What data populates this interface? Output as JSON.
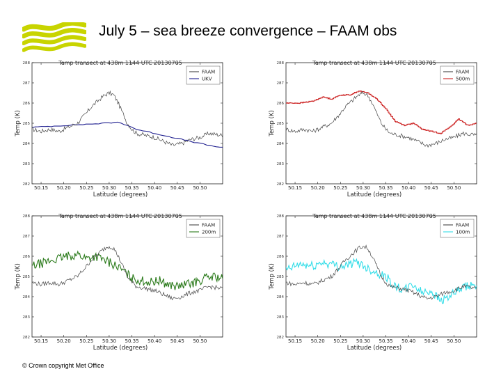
{
  "slide": {
    "title": "July 5 – sea breeze convergence – FAAM obs",
    "footer": "© Crown copyright   Met Office",
    "logo_color": "#c8d400"
  },
  "chart_data": [
    {
      "type": "line",
      "title": "Temp transect at 438m 1144 UTC 20130705",
      "xlabel": "Latitude (degrees)",
      "ylabel": "Temp (K)",
      "xlim": [
        50.13,
        50.55
      ],
      "ylim": [
        282,
        288
      ],
      "xticks": [
        50.15,
        50.2,
        50.25,
        50.3,
        50.35,
        50.4,
        50.45,
        50.5
      ],
      "xtick_labels": [
        "50.15",
        "50.20",
        "50.25",
        "50.30",
        "50.35",
        "50.40",
        "50.45",
        "50.50"
      ],
      "yticks": [
        282,
        283,
        284,
        285,
        286,
        287,
        288
      ],
      "ytick_labels": [
        "282",
        "283",
        "284",
        "285",
        "286",
        "287",
        "288"
      ],
      "legend": "top-right",
      "series": [
        {
          "name": "FAAM",
          "color": "#444444",
          "style": "jagged",
          "x": [
            50.13,
            50.15,
            50.17,
            50.19,
            50.21,
            50.23,
            50.25,
            50.26,
            50.27,
            50.28,
            50.29,
            50.3,
            50.31,
            50.32,
            50.33,
            50.34,
            50.35,
            50.36,
            50.38,
            50.4,
            50.42,
            50.44,
            50.46,
            50.48,
            50.5,
            50.52,
            50.55
          ],
          "y": [
            284.7,
            284.6,
            284.7,
            284.6,
            284.8,
            285.0,
            285.5,
            285.8,
            286.0,
            286.2,
            286.4,
            286.5,
            286.4,
            286.0,
            285.5,
            285.0,
            284.7,
            284.5,
            284.4,
            284.3,
            284.1,
            283.9,
            284.0,
            284.2,
            284.3,
            284.5,
            284.4
          ]
        },
        {
          "name": "UKV",
          "color": "#1f1f8f",
          "style": "smooth",
          "x": [
            50.13,
            50.17,
            50.21,
            50.25,
            50.29,
            50.32,
            50.34,
            50.36,
            50.4,
            50.44,
            50.48,
            50.52,
            50.55
          ],
          "y": [
            284.8,
            284.85,
            284.9,
            284.95,
            285.0,
            285.05,
            284.9,
            284.7,
            284.5,
            284.3,
            284.1,
            283.9,
            283.8
          ]
        }
      ]
    },
    {
      "type": "line",
      "title": "Temp transect at 438m 1144 UTC 20130705",
      "xlabel": "Latitude (degrees)",
      "ylabel": "Temp (K)",
      "xlim": [
        50.13,
        50.55
      ],
      "ylim": [
        282,
        288
      ],
      "xticks": [
        50.15,
        50.2,
        50.25,
        50.3,
        50.35,
        50.4,
        50.45,
        50.5
      ],
      "xtick_labels": [
        "50.15",
        "50.20",
        "50.25",
        "50.30",
        "50.35",
        "50.40",
        "50.45",
        "50.50"
      ],
      "yticks": [
        282,
        283,
        284,
        285,
        286,
        287,
        288
      ],
      "ytick_labels": [
        "282",
        "283",
        "284",
        "285",
        "286",
        "287",
        "288"
      ],
      "legend": "top-right",
      "series": [
        {
          "name": "FAAM",
          "color": "#444444",
          "style": "jagged",
          "x": [
            50.13,
            50.15,
            50.17,
            50.19,
            50.21,
            50.23,
            50.25,
            50.26,
            50.27,
            50.28,
            50.29,
            50.3,
            50.31,
            50.32,
            50.33,
            50.34,
            50.35,
            50.36,
            50.38,
            50.4,
            50.42,
            50.44,
            50.46,
            50.48,
            50.5,
            50.52,
            50.55
          ],
          "y": [
            284.7,
            284.6,
            284.7,
            284.6,
            284.8,
            285.0,
            285.5,
            285.8,
            286.0,
            286.2,
            286.4,
            286.5,
            286.4,
            286.0,
            285.5,
            285.0,
            284.7,
            284.5,
            284.4,
            284.3,
            284.1,
            283.9,
            284.0,
            284.2,
            284.3,
            284.5,
            284.4
          ]
        },
        {
          "name": "500m",
          "color": "#cc2222",
          "style": "step",
          "x": [
            50.13,
            50.16,
            50.19,
            50.21,
            50.23,
            50.25,
            50.27,
            50.29,
            50.31,
            50.33,
            50.35,
            50.37,
            50.39,
            50.41,
            50.43,
            50.45,
            50.47,
            50.49,
            50.51,
            50.53,
            50.55
          ],
          "y": [
            286.0,
            286.0,
            286.1,
            286.3,
            286.2,
            286.4,
            286.4,
            286.6,
            286.5,
            286.2,
            285.7,
            285.1,
            284.9,
            285.0,
            284.7,
            284.6,
            284.5,
            284.8,
            285.2,
            284.9,
            285.0
          ]
        }
      ]
    },
    {
      "type": "line",
      "title": "Temp transect at 438m 1144 UTC 20130705",
      "xlabel": "Latitude (degrees)",
      "ylabel": "Temp (K)",
      "xlim": [
        50.13,
        50.55
      ],
      "ylim": [
        282,
        288
      ],
      "xticks": [
        50.15,
        50.2,
        50.25,
        50.3,
        50.35,
        50.4,
        50.45,
        50.5
      ],
      "xtick_labels": [
        "50.15",
        "50.20",
        "50.25",
        "50.30",
        "50.35",
        "50.40",
        "50.45",
        "50.50"
      ],
      "yticks": [
        282,
        283,
        284,
        285,
        286,
        287,
        288
      ],
      "ytick_labels": [
        "282",
        "283",
        "284",
        "285",
        "286",
        "287",
        "288"
      ],
      "legend": "top-right",
      "series": [
        {
          "name": "FAAM",
          "color": "#444444",
          "style": "jagged",
          "x": [
            50.13,
            50.15,
            50.17,
            50.19,
            50.21,
            50.23,
            50.25,
            50.26,
            50.27,
            50.28,
            50.29,
            50.3,
            50.31,
            50.32,
            50.33,
            50.34,
            50.35,
            50.36,
            50.38,
            50.4,
            50.42,
            50.44,
            50.46,
            50.48,
            50.5,
            50.52,
            50.55
          ],
          "y": [
            284.7,
            284.6,
            284.7,
            284.6,
            284.8,
            285.0,
            285.5,
            285.8,
            286.0,
            286.2,
            286.4,
            286.5,
            286.4,
            286.0,
            285.5,
            285.0,
            284.7,
            284.5,
            284.4,
            284.3,
            284.1,
            283.9,
            284.0,
            284.2,
            284.3,
            284.5,
            284.4
          ]
        },
        {
          "name": "200m",
          "color": "#2a7a1a",
          "style": "noisy",
          "x": [
            50.13,
            50.16,
            50.19,
            50.21,
            50.23,
            50.25,
            50.27,
            50.29,
            50.31,
            50.33,
            50.35,
            50.37,
            50.39,
            50.41,
            50.43,
            50.45,
            50.47,
            50.49,
            50.51,
            50.53,
            50.55
          ],
          "y": [
            285.5,
            285.7,
            285.9,
            286.0,
            286.1,
            285.9,
            286.0,
            285.8,
            285.6,
            285.3,
            284.9,
            284.8,
            284.7,
            284.8,
            284.6,
            284.5,
            284.6,
            284.7,
            284.9,
            285.0,
            284.9
          ]
        }
      ]
    },
    {
      "type": "line",
      "title": "Temp transect at 438m 1144 UTC 20130705",
      "xlabel": "Latitude (degrees)",
      "ylabel": "Temp (K)",
      "xlim": [
        50.13,
        50.55
      ],
      "ylim": [
        282,
        288
      ],
      "xticks": [
        50.15,
        50.2,
        50.25,
        50.3,
        50.35,
        50.4,
        50.45,
        50.5
      ],
      "xtick_labels": [
        "50.15",
        "50.20",
        "50.25",
        "50.30",
        "50.35",
        "50.40",
        "50.45",
        "50.50"
      ],
      "yticks": [
        282,
        283,
        284,
        285,
        286,
        287,
        288
      ],
      "ytick_labels": [
        "282",
        "283",
        "284",
        "285",
        "286",
        "287",
        "288"
      ],
      "legend": "top-right",
      "series": [
        {
          "name": "FAAM",
          "color": "#444444",
          "style": "jagged",
          "x": [
            50.13,
            50.15,
            50.17,
            50.19,
            50.21,
            50.23,
            50.25,
            50.26,
            50.27,
            50.28,
            50.29,
            50.3,
            50.31,
            50.32,
            50.33,
            50.34,
            50.35,
            50.36,
            50.38,
            50.4,
            50.42,
            50.44,
            50.46,
            50.48,
            50.5,
            50.52,
            50.55
          ],
          "y": [
            284.7,
            284.6,
            284.7,
            284.6,
            284.8,
            285.0,
            285.5,
            285.8,
            286.0,
            286.2,
            286.4,
            286.5,
            286.4,
            286.0,
            285.5,
            285.0,
            284.7,
            284.5,
            284.4,
            284.3,
            284.1,
            283.9,
            284.0,
            284.2,
            284.3,
            284.5,
            284.4
          ]
        },
        {
          "name": "100m",
          "color": "#33dde8",
          "style": "noisy",
          "x": [
            50.13,
            50.16,
            50.19,
            50.21,
            50.23,
            50.25,
            50.27,
            50.29,
            50.31,
            50.33,
            50.35,
            50.37,
            50.39,
            50.41,
            50.43,
            50.45,
            50.47,
            50.49,
            50.51,
            50.53,
            50.55
          ],
          "y": [
            285.3,
            285.6,
            285.5,
            285.7,
            285.6,
            285.5,
            285.6,
            285.7,
            285.4,
            285.2,
            285.0,
            284.5,
            284.3,
            284.6,
            284.2,
            284.3,
            283.8,
            284.0,
            284.3,
            284.5,
            284.6
          ]
        }
      ]
    }
  ]
}
